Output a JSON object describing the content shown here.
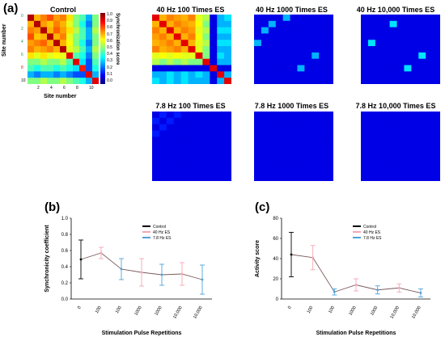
{
  "panel_a": {
    "label": "(a)",
    "control": {
      "title": "Control",
      "xlabel": "Site number",
      "ylabel": "Site number",
      "xticks": [
        "2",
        "4",
        "6",
        "8",
        "10"
      ],
      "yticks": [
        "0",
        "2",
        "4",
        "6",
        "8",
        "10"
      ],
      "colorbar_label": "Synchronization score",
      "colorbar_ticks": [
        "1.0",
        "0.9",
        "0.8",
        "0.7",
        "0.6",
        "0.5",
        "0.4",
        "0.3",
        "0.2",
        "0.1",
        "0.0"
      ]
    },
    "heatmap_titles": [
      "40 Hz  100 Times  ES",
      "40 Hz  1000 Times  ES",
      "40 Hz  10,000 Times  ES",
      "7.8 Hz  100 Times  ES",
      "7.8 Hz  1000 Times  ES",
      "7.8 Hz  10,000 Times  ES"
    ]
  },
  "panel_b": {
    "label": "(b)"
  },
  "panel_c": {
    "label": "(c)"
  },
  "colors": {
    "control": "#000000",
    "hz40": "#f4a6b4",
    "hz78": "#4fa3d9",
    "connector": "#7a5a5a",
    "heatmap_bg": "#00007a"
  },
  "chart_data": [
    {
      "type": "heatmap",
      "title": "Control",
      "xlabel": "Site number",
      "ylabel": "Site number",
      "range": [
        0,
        1
      ],
      "colormap": "jet",
      "values": [
        [
          0.95,
          0.7,
          0.75,
          0.8,
          0.72,
          0.75,
          0.65,
          0.5,
          0.45,
          0.3,
          0.5
        ],
        [
          0.7,
          0.95,
          0.72,
          0.68,
          0.75,
          0.7,
          0.6,
          0.5,
          0.4,
          0.25,
          0.5
        ],
        [
          0.75,
          0.72,
          0.95,
          0.7,
          0.78,
          0.72,
          0.65,
          0.55,
          0.45,
          0.3,
          0.55
        ],
        [
          0.8,
          0.68,
          0.7,
          0.95,
          0.7,
          0.75,
          0.6,
          0.5,
          0.45,
          0.3,
          0.5
        ],
        [
          0.72,
          0.75,
          0.78,
          0.7,
          0.95,
          0.7,
          0.62,
          0.5,
          0.4,
          0.25,
          0.5
        ],
        [
          0.75,
          0.7,
          0.72,
          0.75,
          0.7,
          0.95,
          0.6,
          0.55,
          0.45,
          0.3,
          0.55
        ],
        [
          0.65,
          0.6,
          0.65,
          0.6,
          0.62,
          0.6,
          0.9,
          0.45,
          0.4,
          0.25,
          0.5
        ],
        [
          0.5,
          0.5,
          0.55,
          0.5,
          0.5,
          0.55,
          0.45,
          0.9,
          0.35,
          0.2,
          0.45
        ],
        [
          0.45,
          0.4,
          0.45,
          0.45,
          0.4,
          0.45,
          0.4,
          0.35,
          0.85,
          0.2,
          0.4
        ],
        [
          0.3,
          0.25,
          0.3,
          0.3,
          0.25,
          0.3,
          0.25,
          0.2,
          0.2,
          0.9,
          0.3
        ],
        [
          0.5,
          0.5,
          0.55,
          0.5,
          0.5,
          0.55,
          0.5,
          0.45,
          0.4,
          0.3,
          0.9
        ]
      ]
    },
    {
      "type": "heatmap",
      "title": "40 Hz  100 Times  ES",
      "range": [
        0,
        1
      ],
      "colormap": "jet",
      "values": [
        [
          0.9,
          0.7,
          0.75,
          0.72,
          0.7,
          0.75,
          0.6,
          0.55,
          0.1,
          0.3,
          0.35
        ],
        [
          0.7,
          0.9,
          0.7,
          0.75,
          0.72,
          0.7,
          0.62,
          0.5,
          0.1,
          0.3,
          0.3
        ],
        [
          0.75,
          0.7,
          0.9,
          0.7,
          0.75,
          0.72,
          0.6,
          0.55,
          0.1,
          0.35,
          0.35
        ],
        [
          0.72,
          0.75,
          0.7,
          0.9,
          0.7,
          0.75,
          0.62,
          0.5,
          0.1,
          0.3,
          0.3
        ],
        [
          0.7,
          0.72,
          0.75,
          0.7,
          0.9,
          0.7,
          0.6,
          0.55,
          0.1,
          0.35,
          0.35
        ],
        [
          0.75,
          0.7,
          0.72,
          0.75,
          0.7,
          0.9,
          0.6,
          0.5,
          0.1,
          0.3,
          0.3
        ],
        [
          0.6,
          0.62,
          0.6,
          0.62,
          0.6,
          0.6,
          0.9,
          0.5,
          0.1,
          0.35,
          0.3
        ],
        [
          0.55,
          0.5,
          0.55,
          0.5,
          0.55,
          0.5,
          0.5,
          0.9,
          0.1,
          0.3,
          0.3
        ],
        [
          0.1,
          0.1,
          0.1,
          0.1,
          0.1,
          0.1,
          0.1,
          0.1,
          0.9,
          0.1,
          0.1
        ],
        [
          0.3,
          0.3,
          0.35,
          0.3,
          0.35,
          0.3,
          0.35,
          0.3,
          0.1,
          0.9,
          0.3
        ],
        [
          0.35,
          0.3,
          0.35,
          0.3,
          0.35,
          0.3,
          0.3,
          0.3,
          0.1,
          0.3,
          0.9
        ]
      ]
    },
    {
      "type": "heatmap",
      "title": "40 Hz  1000 Times  ES",
      "range": [
        0,
        1
      ],
      "colormap": "jet",
      "values": [
        [
          0.1,
          0.1,
          0.1,
          0.1,
          0.3,
          0.1,
          0.1,
          0.1,
          0.1,
          0.1,
          0.1
        ],
        [
          0.1,
          0.1,
          0.3,
          0.1,
          0.1,
          0.1,
          0.1,
          0.1,
          0.1,
          0.1,
          0.1
        ],
        [
          0.1,
          0.3,
          0.1,
          0.1,
          0.1,
          0.1,
          0.1,
          0.1,
          0.1,
          0.1,
          0.1
        ],
        [
          0.1,
          0.1,
          0.1,
          0.1,
          0.1,
          0.1,
          0.1,
          0.1,
          0.1,
          0.1,
          0.1
        ],
        [
          0.3,
          0.1,
          0.1,
          0.1,
          0.1,
          0.1,
          0.1,
          0.1,
          0.1,
          0.1,
          0.1
        ],
        [
          0.1,
          0.1,
          0.1,
          0.1,
          0.1,
          0.1,
          0.1,
          0.1,
          0.1,
          0.1,
          0.1
        ],
        [
          0.1,
          0.1,
          0.1,
          0.1,
          0.1,
          0.1,
          0.1,
          0.1,
          0.3,
          0.1,
          0.1
        ],
        [
          0.1,
          0.1,
          0.1,
          0.1,
          0.1,
          0.1,
          0.1,
          0.1,
          0.1,
          0.1,
          0.1
        ],
        [
          0.1,
          0.1,
          0.1,
          0.1,
          0.1,
          0.1,
          0.3,
          0.1,
          0.1,
          0.1,
          0.1
        ],
        [
          0.1,
          0.1,
          0.1,
          0.1,
          0.1,
          0.1,
          0.1,
          0.1,
          0.1,
          0.1,
          0.1
        ],
        [
          0.1,
          0.1,
          0.1,
          0.1,
          0.1,
          0.1,
          0.1,
          0.1,
          0.1,
          0.1,
          0.1
        ]
      ]
    },
    {
      "type": "heatmap",
      "title": "40 Hz  10,000 Times  ES",
      "range": [
        0,
        1
      ],
      "colormap": "jet",
      "values": [
        [
          0.1,
          0.1,
          0.1,
          0.1,
          0.1,
          0.1,
          0.1,
          0.1,
          0.1,
          0.1,
          0.1
        ],
        [
          0.1,
          0.1,
          0.1,
          0.1,
          0.35,
          0.1,
          0.1,
          0.1,
          0.1,
          0.1,
          0.1
        ],
        [
          0.1,
          0.1,
          0.1,
          0.1,
          0.1,
          0.1,
          0.1,
          0.1,
          0.1,
          0.1,
          0.1
        ],
        [
          0.1,
          0.1,
          0.1,
          0.1,
          0.1,
          0.1,
          0.1,
          0.1,
          0.1,
          0.1,
          0.1
        ],
        [
          0.1,
          0.35,
          0.1,
          0.1,
          0.1,
          0.1,
          0.1,
          0.1,
          0.1,
          0.1,
          0.1
        ],
        [
          0.1,
          0.1,
          0.1,
          0.1,
          0.1,
          0.1,
          0.1,
          0.1,
          0.1,
          0.1,
          0.1
        ],
        [
          0.1,
          0.1,
          0.1,
          0.1,
          0.1,
          0.1,
          0.1,
          0.1,
          0.35,
          0.1,
          0.1
        ],
        [
          0.1,
          0.1,
          0.1,
          0.1,
          0.1,
          0.1,
          0.1,
          0.1,
          0.1,
          0.1,
          0.1
        ],
        [
          0.1,
          0.1,
          0.1,
          0.1,
          0.1,
          0.1,
          0.35,
          0.1,
          0.1,
          0.1,
          0.1
        ],
        [
          0.1,
          0.1,
          0.1,
          0.1,
          0.1,
          0.1,
          0.1,
          0.1,
          0.1,
          0.1,
          0.1
        ],
        [
          0.1,
          0.1,
          0.1,
          0.1,
          0.1,
          0.1,
          0.1,
          0.1,
          0.1,
          0.1,
          0.1
        ]
      ]
    },
    {
      "type": "heatmap",
      "title": "7.8 Hz  100 Times  ES",
      "range": [
        0,
        1
      ],
      "colormap": "jet",
      "values": [
        [
          0.1,
          0.15,
          0.1,
          0.15,
          0.1,
          0.1,
          0.1,
          0.1,
          0.1,
          0.1,
          0.1
        ],
        [
          0.15,
          0.1,
          0.15,
          0.1,
          0.1,
          0.1,
          0.1,
          0.1,
          0.1,
          0.1,
          0.1
        ],
        [
          0.1,
          0.15,
          0.1,
          0.1,
          0.1,
          0.1,
          0.1,
          0.1,
          0.1,
          0.1,
          0.1
        ],
        [
          0.15,
          0.1,
          0.1,
          0.1,
          0.1,
          0.1,
          0.1,
          0.1,
          0.1,
          0.1,
          0.1
        ],
        [
          0.1,
          0.1,
          0.1,
          0.1,
          0.1,
          0.1,
          0.1,
          0.1,
          0.1,
          0.1,
          0.1
        ],
        [
          0.1,
          0.1,
          0.1,
          0.1,
          0.1,
          0.1,
          0.1,
          0.1,
          0.1,
          0.1,
          0.1
        ],
        [
          0.1,
          0.1,
          0.1,
          0.1,
          0.1,
          0.1,
          0.1,
          0.1,
          0.1,
          0.1,
          0.1
        ],
        [
          0.1,
          0.1,
          0.1,
          0.1,
          0.1,
          0.1,
          0.1,
          0.1,
          0.1,
          0.1,
          0.1
        ],
        [
          0.1,
          0.1,
          0.1,
          0.1,
          0.1,
          0.1,
          0.1,
          0.1,
          0.1,
          0.1,
          0.1
        ],
        [
          0.1,
          0.1,
          0.1,
          0.1,
          0.1,
          0.1,
          0.1,
          0.1,
          0.1,
          0.1,
          0.1
        ],
        [
          0.1,
          0.1,
          0.1,
          0.1,
          0.1,
          0.1,
          0.1,
          0.1,
          0.1,
          0.1,
          0.1
        ]
      ]
    },
    {
      "type": "heatmap",
      "title": "7.8 Hz  1000 Times  ES",
      "range": [
        0,
        1
      ],
      "colormap": "jet",
      "values": [
        [
          0.1,
          0.1,
          0.1,
          0.1,
          0.1,
          0.1,
          0.1,
          0.1,
          0.1,
          0.1,
          0.1
        ],
        [
          0.1,
          0.1,
          0.1,
          0.1,
          0.1,
          0.1,
          0.1,
          0.1,
          0.1,
          0.1,
          0.1
        ],
        [
          0.1,
          0.1,
          0.1,
          0.1,
          0.1,
          0.1,
          0.1,
          0.1,
          0.1,
          0.1,
          0.1
        ],
        [
          0.1,
          0.1,
          0.1,
          0.1,
          0.1,
          0.1,
          0.1,
          0.1,
          0.1,
          0.1,
          0.1
        ],
        [
          0.1,
          0.1,
          0.1,
          0.1,
          0.1,
          0.1,
          0.1,
          0.1,
          0.1,
          0.1,
          0.1
        ],
        [
          0.1,
          0.1,
          0.1,
          0.1,
          0.1,
          0.1,
          0.1,
          0.1,
          0.1,
          0.1,
          0.1
        ],
        [
          0.1,
          0.1,
          0.1,
          0.1,
          0.1,
          0.1,
          0.1,
          0.1,
          0.1,
          0.1,
          0.1
        ],
        [
          0.1,
          0.1,
          0.1,
          0.1,
          0.1,
          0.1,
          0.1,
          0.1,
          0.1,
          0.1,
          0.1
        ],
        [
          0.1,
          0.1,
          0.1,
          0.1,
          0.1,
          0.1,
          0.1,
          0.1,
          0.1,
          0.1,
          0.1
        ],
        [
          0.1,
          0.1,
          0.1,
          0.1,
          0.1,
          0.1,
          0.1,
          0.1,
          0.1,
          0.1,
          0.1
        ],
        [
          0.1,
          0.1,
          0.1,
          0.1,
          0.1,
          0.1,
          0.1,
          0.1,
          0.1,
          0.1,
          0.1
        ]
      ]
    },
    {
      "type": "heatmap",
      "title": "7.8 Hz  10,000 Times  ES",
      "range": [
        0,
        1
      ],
      "colormap": "jet",
      "values": [
        [
          0.1,
          0.1,
          0.1,
          0.1,
          0.1,
          0.1,
          0.1,
          0.1,
          0.1,
          0.1,
          0.1
        ],
        [
          0.1,
          0.1,
          0.1,
          0.1,
          0.1,
          0.1,
          0.1,
          0.1,
          0.1,
          0.1,
          0.1
        ],
        [
          0.1,
          0.1,
          0.1,
          0.1,
          0.1,
          0.1,
          0.1,
          0.1,
          0.1,
          0.1,
          0.1
        ],
        [
          0.1,
          0.1,
          0.1,
          0.1,
          0.1,
          0.1,
          0.1,
          0.1,
          0.1,
          0.1,
          0.1
        ],
        [
          0.1,
          0.1,
          0.1,
          0.1,
          0.1,
          0.1,
          0.1,
          0.1,
          0.1,
          0.1,
          0.1
        ],
        [
          0.1,
          0.1,
          0.1,
          0.1,
          0.1,
          0.1,
          0.1,
          0.1,
          0.1,
          0.1,
          0.1
        ],
        [
          0.1,
          0.1,
          0.1,
          0.1,
          0.1,
          0.1,
          0.1,
          0.1,
          0.1,
          0.1,
          0.1
        ],
        [
          0.1,
          0.1,
          0.1,
          0.1,
          0.1,
          0.1,
          0.1,
          0.1,
          0.1,
          0.1,
          0.1
        ],
        [
          0.1,
          0.1,
          0.1,
          0.1,
          0.1,
          0.1,
          0.1,
          0.1,
          0.1,
          0.1,
          0.1
        ],
        [
          0.1,
          0.1,
          0.1,
          0.1,
          0.1,
          0.1,
          0.1,
          0.1,
          0.1,
          0.1,
          0.1
        ],
        [
          0.1,
          0.1,
          0.1,
          0.1,
          0.1,
          0.1,
          0.1,
          0.1,
          0.1,
          0.1,
          0.1
        ]
      ]
    },
    {
      "type": "line",
      "title": "",
      "xlabel": "Stimulation Pulse Repetitions",
      "ylabel": "Synchronicity coefficient",
      "categories": [
        "0",
        "100",
        "100",
        "1000",
        "1000",
        "10,000",
        "10,000"
      ],
      "ylim": [
        0,
        1.0
      ],
      "yticks": [
        "0.0",
        "0.2",
        "0.4",
        "0.6",
        "0.8",
        "1.0"
      ],
      "legend": [
        "Control",
        "40 Hz  ES",
        "7.8 Hz ES"
      ],
      "legend_position": "top-left",
      "series": [
        {
          "name": "Control",
          "points": [
            {
              "x": 0,
              "y": 0.49,
              "err": 0.24
            }
          ]
        },
        {
          "name": "40 Hz  ES",
          "points": [
            {
              "x": 1,
              "y": 0.57,
              "err": 0.07
            },
            {
              "x": 3,
              "y": 0.33,
              "err": 0.17
            },
            {
              "x": 5,
              "y": 0.31,
              "err": 0.14
            }
          ]
        },
        {
          "name": "7.8 Hz ES",
          "points": [
            {
              "x": 2,
              "y": 0.37,
              "err": 0.13
            },
            {
              "x": 4,
              "y": 0.3,
              "err": 0.13
            },
            {
              "x": 6,
              "y": 0.24,
              "err": 0.18
            }
          ]
        }
      ]
    },
    {
      "type": "line",
      "title": "",
      "xlabel": "Stimulation Pulse Repetitions",
      "ylabel": "Activity score",
      "categories": [
        "0",
        "100",
        "100",
        "1000",
        "1000",
        "10,000",
        "10,000"
      ],
      "ylim": [
        0,
        80
      ],
      "yticks": [
        "0",
        "20",
        "40",
        "60",
        "80"
      ],
      "legend": [
        "Control",
        "40 Hz  ES",
        "7.8 Hz ES"
      ],
      "legend_position": "top-left",
      "series": [
        {
          "name": "Control",
          "points": [
            {
              "x": 0,
              "y": 44,
              "err": 22
            }
          ]
        },
        {
          "name": "40 Hz  ES",
          "points": [
            {
              "x": 1,
              "y": 41,
              "err": 12
            },
            {
              "x": 3,
              "y": 14,
              "err": 6
            },
            {
              "x": 5,
              "y": 11,
              "err": 4
            }
          ]
        },
        {
          "name": "7.8 Hz ES",
          "points": [
            {
              "x": 2,
              "y": 7,
              "err": 3
            },
            {
              "x": 4,
              "y": 9,
              "err": 4
            },
            {
              "x": 6,
              "y": 6,
              "err": 4
            }
          ]
        }
      ]
    }
  ]
}
